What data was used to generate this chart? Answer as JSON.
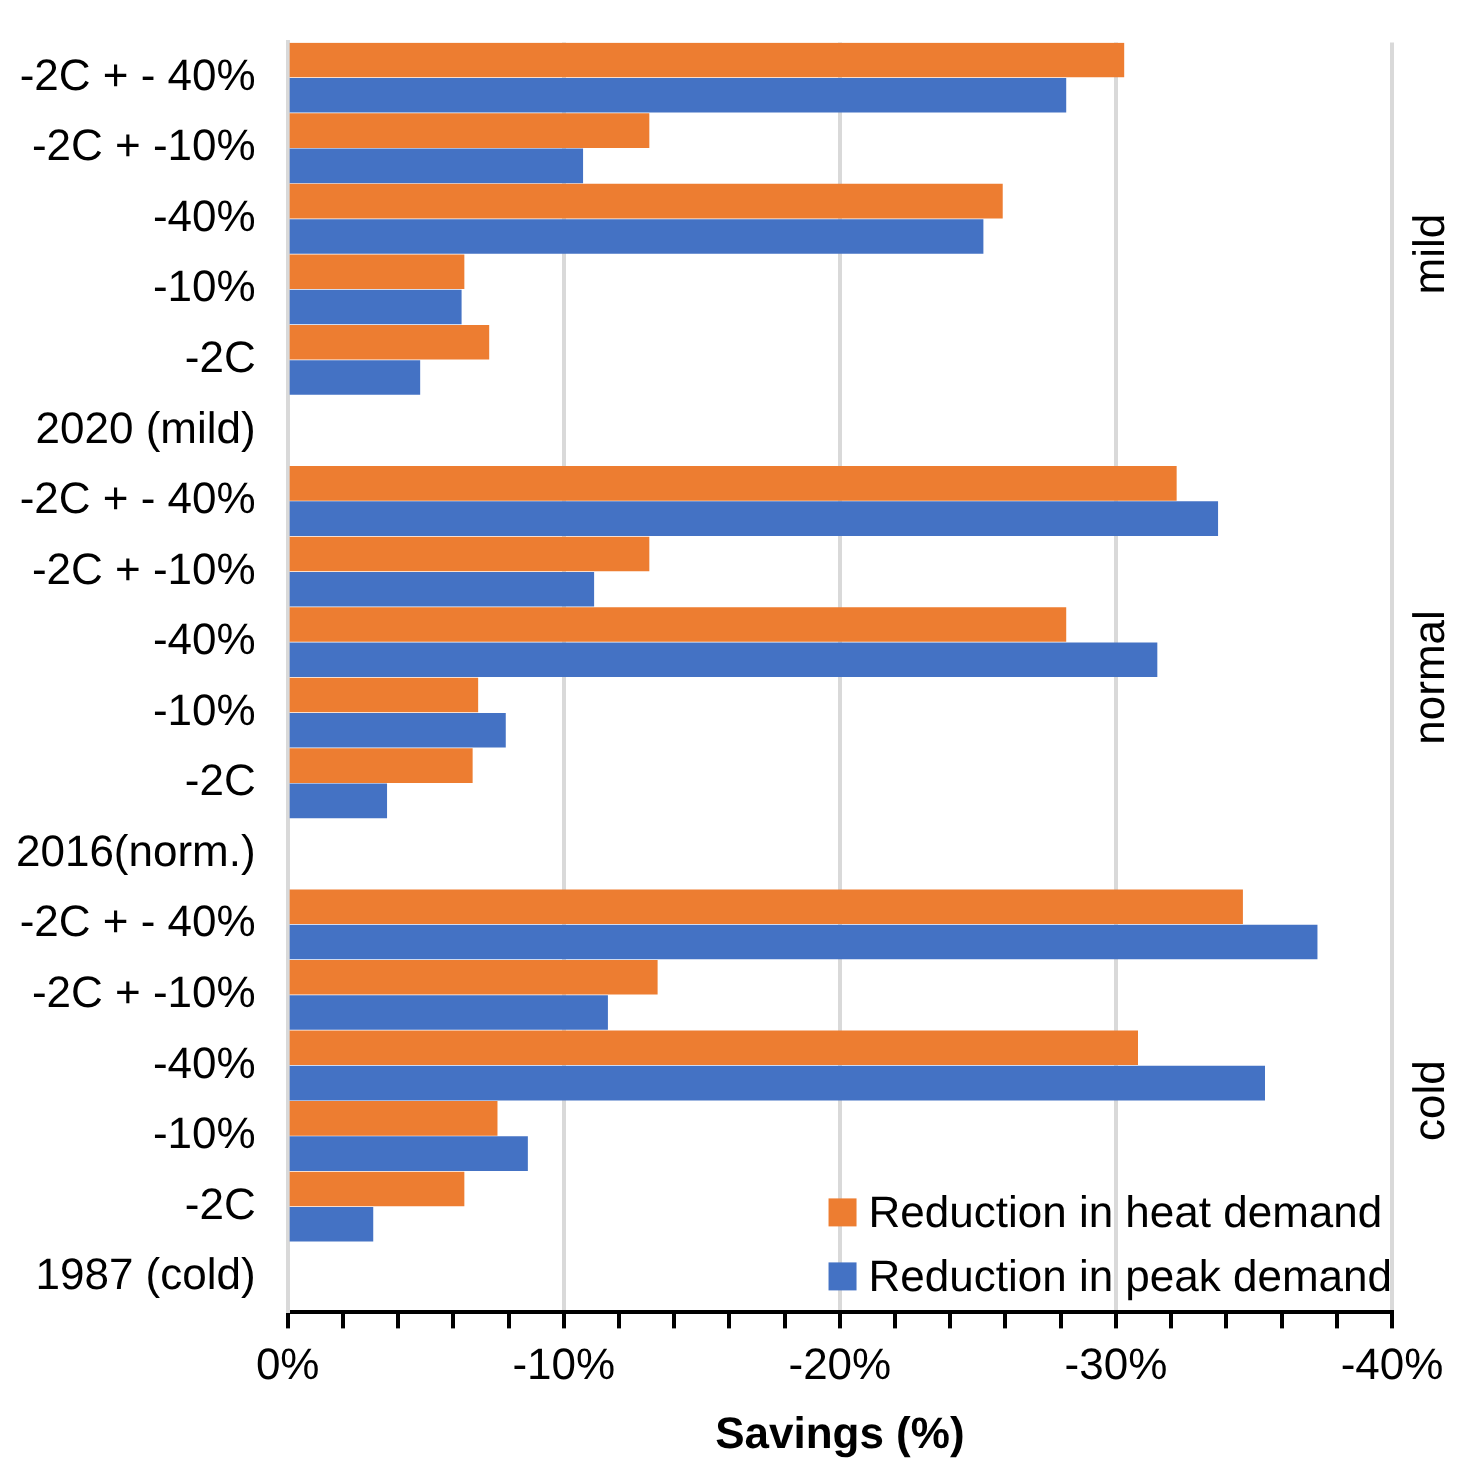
{
  "chart_data": {
    "type": "bar",
    "orientation": "horizontal",
    "xlabel": "Savings (%)",
    "categories": [
      "-2C + - 40%",
      "-2C + -10%",
      "-40%",
      "-10%",
      "-2C",
      "2020 (mild)",
      "-2C + - 40%",
      "-2C + -10%",
      "-40%",
      "-10%",
      "-2C",
      "2016(norm.)",
      "-2C + - 40%",
      "-2C + -10%",
      "-40%",
      "-10%",
      "-2C",
      "1987 (cold)"
    ],
    "series": [
      {
        "name": "Reduction in heat demand",
        "color": "#ed7d31",
        "values": [
          -30.3,
          -13.1,
          -25.9,
          -6.4,
          -7.3,
          null,
          -32.2,
          -13.1,
          -28.2,
          -6.9,
          -6.7,
          null,
          -34.6,
          -13.4,
          -30.8,
          -7.6,
          -6.4,
          null
        ]
      },
      {
        "name": "Reduction in peak demand",
        "color": "#4472c4",
        "values": [
          -28.2,
          -10.7,
          -25.2,
          -6.3,
          -4.8,
          null,
          -33.7,
          -11.1,
          -31.5,
          -7.9,
          -3.6,
          null,
          -37.3,
          -11.6,
          -35.4,
          -8.7,
          -3.1,
          null
        ]
      }
    ],
    "xlim": [
      0,
      -40
    ],
    "xticks": [
      {
        "value": 0,
        "label": "0%"
      },
      {
        "value": -2,
        "label": null
      },
      {
        "value": -4,
        "label": null
      },
      {
        "value": -6,
        "label": null
      },
      {
        "value": -8,
        "label": null
      },
      {
        "value": -10,
        "label": "-10%"
      },
      {
        "value": -12,
        "label": null
      },
      {
        "value": -14,
        "label": null
      },
      {
        "value": -16,
        "label": null
      },
      {
        "value": -18,
        "label": null
      },
      {
        "value": -20,
        "label": "-20%"
      },
      {
        "value": -22,
        "label": null
      },
      {
        "value": -24,
        "label": null
      },
      {
        "value": -26,
        "label": null
      },
      {
        "value": -28,
        "label": null
      },
      {
        "value": -30,
        "label": "-30%"
      },
      {
        "value": -32,
        "label": null
      },
      {
        "value": -34,
        "label": null
      },
      {
        "value": -36,
        "label": null
      },
      {
        "value": -38,
        "label": null
      },
      {
        "value": -40,
        "label": "-40%"
      }
    ],
    "grid": "x",
    "legend": "bottom right",
    "annotations": [
      "mild",
      "normal",
      "cold"
    ]
  }
}
